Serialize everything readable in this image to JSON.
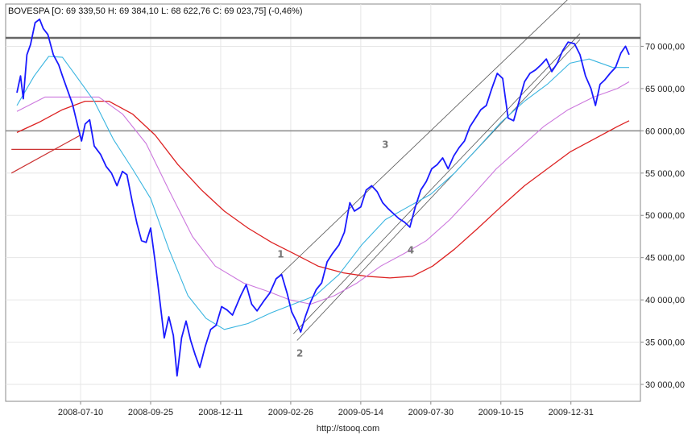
{
  "header": "BOVESPA [O: 69 339,50  H: 69 384,10  L: 68 622,76  C: 69 023,75] (-0,46%)",
  "source": "http://stooq.com",
  "chart_data": {
    "type": "line",
    "title": "BOVESPA [O: 69 339,50  H: 69 384,10  L: 68 622,76  C: 69 023,75] (-0,46%)",
    "ylim": [
      28000,
      75000
    ],
    "y_ticks": [
      30000,
      35000,
      40000,
      45000,
      50000,
      55000,
      60000,
      65000,
      70000
    ],
    "y_tick_labels": [
      "30 000,00",
      "35 000,00",
      "40 000,00",
      "45 000,00",
      "50 000,00",
      "55 000,00",
      "60 000,00",
      "65 000,00",
      "70 000,00"
    ],
    "x_range": [
      "2008-05-01",
      "2010-03-05"
    ],
    "x_ticks": [
      "2008-07-10",
      "2008-09-25",
      "2008-12-11",
      "2009-02-26",
      "2009-05-14",
      "2009-07-30",
      "2009-10-15",
      "2009-12-31"
    ],
    "grid": true,
    "price_open": 69339.5,
    "price_high": 69384.1,
    "price_low": 68622.76,
    "price_close": 69023.75,
    "change_pct": -0.46,
    "horizontal_levels": [
      71000,
      60000
    ],
    "annotations": [
      {
        "text": "1",
        "x": "2009-02-15",
        "y": 45000
      },
      {
        "text": "2",
        "x": "2009-03-08",
        "y": 33300
      },
      {
        "text": "3",
        "x": "2009-06-10",
        "y": 58000
      },
      {
        "text": "4",
        "x": "2009-07-08",
        "y": 45500
      }
    ],
    "series": [
      {
        "role": "price",
        "color": "#1a1aff",
        "points": [
          [
            "2008-05-01",
            64500
          ],
          [
            "2008-05-05",
            66500
          ],
          [
            "2008-05-08",
            63800
          ],
          [
            "2008-05-12",
            69000
          ],
          [
            "2008-05-16",
            70200
          ],
          [
            "2008-05-21",
            72800
          ],
          [
            "2008-05-26",
            73200
          ],
          [
            "2008-05-30",
            72100
          ],
          [
            "2008-06-04",
            71400
          ],
          [
            "2008-06-10",
            69000
          ],
          [
            "2008-06-16",
            67800
          ],
          [
            "2008-06-20",
            66500
          ],
          [
            "2008-06-25",
            65000
          ],
          [
            "2008-07-01",
            63200
          ],
          [
            "2008-07-07",
            60500
          ],
          [
            "2008-07-11",
            58800
          ],
          [
            "2008-07-15",
            60800
          ],
          [
            "2008-07-20",
            61300
          ],
          [
            "2008-07-25",
            58200
          ],
          [
            "2008-08-01",
            57200
          ],
          [
            "2008-08-07",
            55800
          ],
          [
            "2008-08-13",
            55000
          ],
          [
            "2008-08-19",
            53500
          ],
          [
            "2008-08-25",
            55200
          ],
          [
            "2008-08-30",
            54800
          ],
          [
            "2008-09-05",
            51500
          ],
          [
            "2008-09-10",
            49000
          ],
          [
            "2008-09-15",
            47000
          ],
          [
            "2008-09-20",
            46800
          ],
          [
            "2008-09-25",
            48500
          ],
          [
            "2008-09-30",
            44500
          ],
          [
            "2008-10-05",
            40000
          ],
          [
            "2008-10-10",
            35500
          ],
          [
            "2008-10-15",
            38000
          ],
          [
            "2008-10-20",
            35800
          ],
          [
            "2008-10-24",
            31000
          ],
          [
            "2008-10-29",
            35500
          ],
          [
            "2008-11-03",
            37500
          ],
          [
            "2008-11-08",
            35200
          ],
          [
            "2008-11-13",
            33500
          ],
          [
            "2008-11-18",
            32000
          ],
          [
            "2008-11-24",
            34500
          ],
          [
            "2008-11-30",
            36500
          ],
          [
            "2008-12-06",
            37000
          ],
          [
            "2008-12-12",
            39200
          ],
          [
            "2008-12-18",
            38800
          ],
          [
            "2008-12-24",
            38200
          ],
          [
            "2009-01-02",
            40500
          ],
          [
            "2009-01-08",
            41800
          ],
          [
            "2009-01-14",
            39500
          ],
          [
            "2009-01-20",
            38700
          ],
          [
            "2009-01-27",
            39800
          ],
          [
            "2009-02-03",
            40800
          ],
          [
            "2009-02-10",
            42500
          ],
          [
            "2009-02-16",
            43000
          ],
          [
            "2009-02-22",
            40800
          ],
          [
            "2009-02-27",
            38600
          ],
          [
            "2009-03-04",
            37500
          ],
          [
            "2009-03-09",
            36200
          ],
          [
            "2009-03-14",
            38000
          ],
          [
            "2009-03-20",
            39800
          ],
          [
            "2009-03-26",
            41200
          ],
          [
            "2009-04-01",
            42000
          ],
          [
            "2009-04-07",
            44500
          ],
          [
            "2009-04-13",
            45500
          ],
          [
            "2009-04-20",
            46500
          ],
          [
            "2009-04-26",
            48000
          ],
          [
            "2009-05-02",
            51500
          ],
          [
            "2009-05-07",
            50500
          ],
          [
            "2009-05-14",
            51000
          ],
          [
            "2009-05-20",
            53000
          ],
          [
            "2009-05-26",
            53500
          ],
          [
            "2009-06-01",
            52800
          ],
          [
            "2009-06-07",
            51500
          ],
          [
            "2009-06-13",
            50800
          ],
          [
            "2009-06-19",
            50200
          ],
          [
            "2009-06-25",
            49600
          ],
          [
            "2009-07-01",
            49200
          ],
          [
            "2009-07-07",
            48600
          ],
          [
            "2009-07-13",
            51000
          ],
          [
            "2009-07-19",
            53000
          ],
          [
            "2009-07-25",
            54000
          ],
          [
            "2009-07-31",
            55500
          ],
          [
            "2009-08-06",
            56000
          ],
          [
            "2009-08-12",
            56800
          ],
          [
            "2009-08-18",
            55500
          ],
          [
            "2009-08-24",
            57000
          ],
          [
            "2009-08-30",
            58000
          ],
          [
            "2009-09-05",
            58800
          ],
          [
            "2009-09-11",
            60500
          ],
          [
            "2009-09-17",
            61500
          ],
          [
            "2009-09-23",
            62500
          ],
          [
            "2009-09-29",
            63000
          ],
          [
            "2009-10-05",
            65000
          ],
          [
            "2009-10-11",
            66800
          ],
          [
            "2009-10-17",
            66200
          ],
          [
            "2009-10-23",
            61500
          ],
          [
            "2009-10-29",
            61200
          ],
          [
            "2009-11-04",
            63500
          ],
          [
            "2009-11-10",
            65800
          ],
          [
            "2009-11-16",
            66800
          ],
          [
            "2009-11-22",
            67200
          ],
          [
            "2009-11-28",
            67800
          ],
          [
            "2009-12-04",
            68500
          ],
          [
            "2009-12-10",
            67000
          ],
          [
            "2009-12-16",
            68000
          ],
          [
            "2009-12-22",
            69500
          ],
          [
            "2009-12-28",
            70500
          ],
          [
            "2010-01-04",
            70300
          ],
          [
            "2010-01-10",
            69000
          ],
          [
            "2010-01-16",
            66500
          ],
          [
            "2010-01-22",
            65000
          ],
          [
            "2010-01-27",
            63000
          ],
          [
            "2010-02-01",
            65500
          ],
          [
            "2010-02-06",
            66000
          ],
          [
            "2010-02-12",
            66800
          ],
          [
            "2010-02-18",
            67500
          ],
          [
            "2010-02-24",
            69200
          ],
          [
            "2010-03-01",
            70000
          ],
          [
            "2010-03-05",
            69000
          ]
        ]
      },
      {
        "role": "moving-average-short",
        "color": "#3ab5e0",
        "points": [
          [
            "2008-05-01",
            63000
          ],
          [
            "2008-05-20",
            66500
          ],
          [
            "2008-06-05",
            68800
          ],
          [
            "2008-06-20",
            68700
          ],
          [
            "2008-07-05",
            66500
          ],
          [
            "2008-07-25",
            63500
          ],
          [
            "2008-08-15",
            59000
          ],
          [
            "2008-09-05",
            55500
          ],
          [
            "2008-09-25",
            52000
          ],
          [
            "2008-10-15",
            46000
          ],
          [
            "2008-11-05",
            40500
          ],
          [
            "2008-11-25",
            37800
          ],
          [
            "2008-12-15",
            36500
          ],
          [
            "2009-01-10",
            37200
          ],
          [
            "2009-02-05",
            38500
          ],
          [
            "2009-03-01",
            39500
          ],
          [
            "2009-03-25",
            40500
          ],
          [
            "2009-04-20",
            43000
          ],
          [
            "2009-05-15",
            46500
          ],
          [
            "2009-06-10",
            49500
          ],
          [
            "2009-07-05",
            51000
          ],
          [
            "2009-07-30",
            52500
          ],
          [
            "2009-08-25",
            55000
          ],
          [
            "2009-09-20",
            58000
          ],
          [
            "2009-10-15",
            61000
          ],
          [
            "2009-11-10",
            63500
          ],
          [
            "2009-12-05",
            65500
          ],
          [
            "2009-12-30",
            68000
          ],
          [
            "2010-01-20",
            68500
          ],
          [
            "2010-02-15",
            67500
          ],
          [
            "2010-03-05",
            67500
          ]
        ]
      },
      {
        "role": "moving-average-mid",
        "color": "#cc77dd",
        "points": [
          [
            "2008-05-01",
            62300
          ],
          [
            "2008-06-01",
            64000
          ],
          [
            "2008-07-01",
            64000
          ],
          [
            "2008-07-30",
            64000
          ],
          [
            "2008-08-25",
            62000
          ],
          [
            "2008-09-20",
            58500
          ],
          [
            "2008-10-15",
            53000
          ],
          [
            "2008-11-10",
            47500
          ],
          [
            "2008-12-05",
            44000
          ],
          [
            "2009-01-05",
            42000
          ],
          [
            "2009-02-01",
            41000
          ],
          [
            "2009-02-25",
            40000
          ],
          [
            "2009-03-20",
            39500
          ],
          [
            "2009-04-15",
            40500
          ],
          [
            "2009-05-10",
            42000
          ],
          [
            "2009-06-05",
            44000
          ],
          [
            "2009-07-01",
            45500
          ],
          [
            "2009-07-25",
            47000
          ],
          [
            "2009-08-20",
            49500
          ],
          [
            "2009-09-15",
            52500
          ],
          [
            "2009-10-10",
            55500
          ],
          [
            "2009-11-05",
            58000
          ],
          [
            "2009-12-01",
            60500
          ],
          [
            "2009-12-28",
            62500
          ],
          [
            "2010-01-25",
            64000
          ],
          [
            "2010-02-20",
            65000
          ],
          [
            "2010-03-05",
            65800
          ]
        ]
      },
      {
        "role": "moving-average-long",
        "color": "#dd2222",
        "points": [
          [
            "2008-05-01",
            59800
          ],
          [
            "2008-05-25",
            61000
          ],
          [
            "2008-06-20",
            62500
          ],
          [
            "2008-07-15",
            63500
          ],
          [
            "2008-08-10",
            63500
          ],
          [
            "2008-09-05",
            62000
          ],
          [
            "2008-09-30",
            59500
          ],
          [
            "2008-10-25",
            56000
          ],
          [
            "2008-11-20",
            53000
          ],
          [
            "2008-12-15",
            50500
          ],
          [
            "2009-01-10",
            48500
          ],
          [
            "2009-02-05",
            46800
          ],
          [
            "2009-03-01",
            45500
          ],
          [
            "2009-03-28",
            44000
          ],
          [
            "2009-04-25",
            43200
          ],
          [
            "2009-05-20",
            42800
          ],
          [
            "2009-06-15",
            42600
          ],
          [
            "2009-07-10",
            42800
          ],
          [
            "2009-08-01",
            44000
          ],
          [
            "2009-08-25",
            46000
          ],
          [
            "2009-09-20",
            48500
          ],
          [
            "2009-10-15",
            51000
          ],
          [
            "2009-11-10",
            53500
          ],
          [
            "2009-12-05",
            55500
          ],
          [
            "2009-12-30",
            57500
          ],
          [
            "2010-01-25",
            59000
          ],
          [
            "2010-02-20",
            60500
          ],
          [
            "2010-03-05",
            61200
          ]
        ]
      },
      {
        "role": "support-line",
        "color": "#cc3333",
        "points": [
          [
            "2008-04-25",
            55000
          ],
          [
            "2008-07-10",
            59500
          ]
        ]
      },
      {
        "role": "support-line",
        "color": "#cc3333",
        "points": [
          [
            "2008-04-25",
            57800
          ],
          [
            "2008-07-10",
            57800
          ]
        ]
      },
      {
        "role": "trend-channel",
        "color": "#555555",
        "points": [
          [
            "2009-02-10",
            42500
          ],
          [
            "2010-01-01",
            76000
          ]
        ]
      },
      {
        "role": "trend-channel",
        "color": "#555555",
        "points": [
          [
            "2009-03-05",
            35200
          ],
          [
            "2010-01-10",
            70800
          ]
        ]
      },
      {
        "role": "trend-channel",
        "color": "#555555",
        "points": [
          [
            "2009-03-01",
            36000
          ],
          [
            "2010-01-10",
            71500
          ]
        ]
      }
    ]
  }
}
